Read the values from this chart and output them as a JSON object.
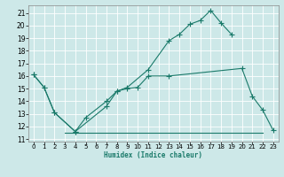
{
  "bg_color": "#cde8e8",
  "grid_color": "#b0d8d8",
  "line_color": "#1a7a6a",
  "xlabel": "Humidex (Indice chaleur)",
  "xlim": [
    -0.5,
    23.5
  ],
  "ylim": [
    10.8,
    21.6
  ],
  "yticks": [
    11,
    12,
    13,
    14,
    15,
    16,
    17,
    18,
    19,
    20,
    21
  ],
  "xticks": [
    0,
    1,
    2,
    3,
    4,
    5,
    6,
    7,
    8,
    9,
    10,
    11,
    12,
    13,
    14,
    15,
    16,
    17,
    18,
    19,
    20,
    21,
    22,
    23
  ],
  "curve1_x": [
    0,
    1,
    2,
    4,
    7,
    8,
    9,
    11,
    13,
    14,
    15,
    16,
    17,
    18,
    19
  ],
  "curve1_y": [
    16.1,
    15.1,
    13.1,
    11.6,
    13.6,
    14.8,
    15.1,
    16.5,
    18.8,
    19.3,
    20.1,
    20.4,
    21.2,
    20.2,
    19.3
  ],
  "curve2_x": [
    0,
    1,
    2,
    4,
    5,
    7,
    8,
    9,
    10,
    11,
    13,
    20,
    21,
    22,
    23
  ],
  "curve2_y": [
    16.1,
    15.1,
    13.1,
    11.6,
    12.7,
    14.0,
    14.8,
    15.0,
    15.1,
    16.0,
    16.0,
    16.6,
    14.4,
    13.3,
    11.7
  ],
  "curve3_x": [
    3,
    22
  ],
  "curve3_y": [
    11.5,
    11.5
  ],
  "xlabel_fontsize": 5.5,
  "tick_fontsize": 5,
  "linewidth": 0.8,
  "markersize": 2.0
}
